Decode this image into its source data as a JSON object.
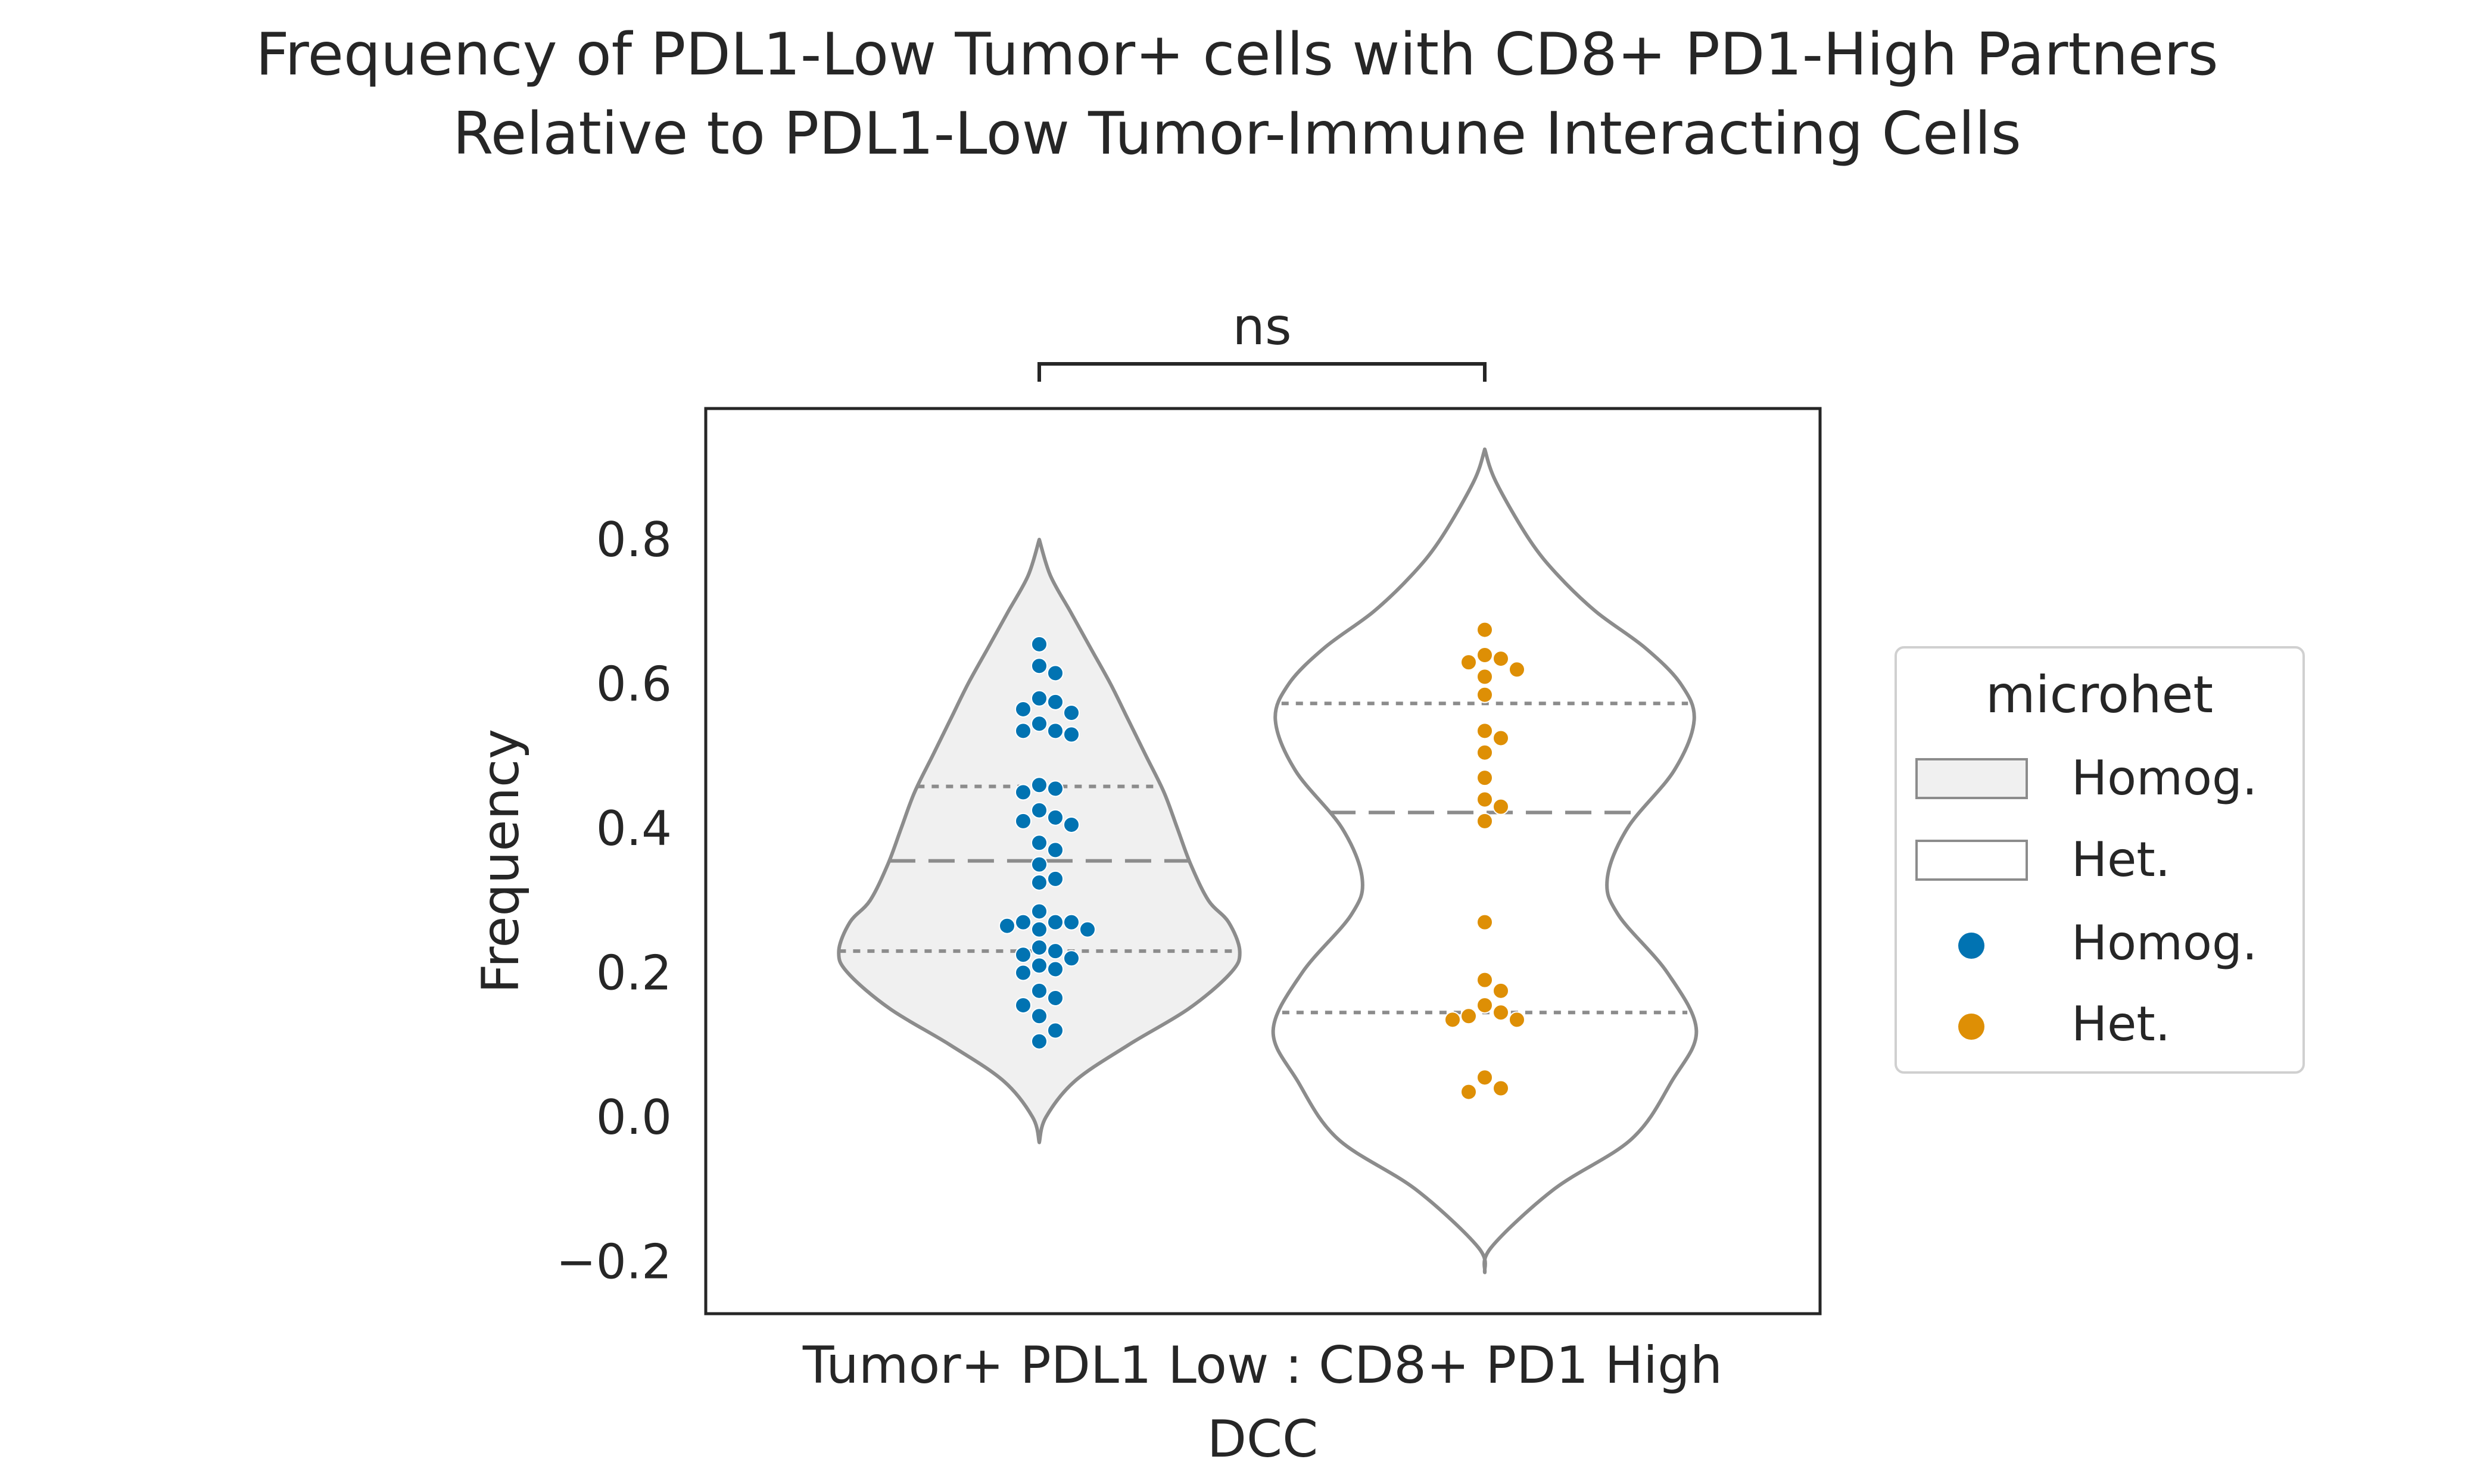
{
  "chart_data": {
    "type": "violin",
    "title_lines": [
      "Frequency of PDL1-Low Tumor+ cells with CD8+ PD1-High Partners",
      "Relative to PDL1-Low Tumor-Immune Interacting Cells"
    ],
    "xlabel_lines": [
      "Tumor+ PDL1 Low : CD8+ PD1 High",
      "DCC"
    ],
    "ylabel": "Frequency",
    "ylim": [
      -0.27,
      0.98
    ],
    "yticks": [
      -0.2,
      0.0,
      0.2,
      0.4,
      0.6,
      0.8
    ],
    "ytick_labels": [
      "−0.2",
      "0.0",
      "0.2",
      "0.4",
      "0.6",
      "0.8"
    ],
    "significance": {
      "label": "ns",
      "between": [
        "Homog.",
        "Het."
      ]
    },
    "legend": {
      "title": "microhet",
      "position": "right",
      "entries": [
        {
          "label": "Homog.",
          "kind": "patch",
          "color": "#f0f0f0"
        },
        {
          "label": "Het.",
          "kind": "patch",
          "color": "#ffffff"
        },
        {
          "label": "Homog.",
          "kind": "point",
          "color": "#0173b2"
        },
        {
          "label": "Het.",
          "kind": "point",
          "color": "#de8f05"
        }
      ]
    },
    "colors": {
      "violin_edge": "#8c8c8c",
      "violin_fill_homog": "#f0f0f0",
      "violin_fill_het": "#ffffff",
      "homog_points": "#0173b2",
      "het_points": "#de8f05",
      "frame": "#262626"
    },
    "series": [
      {
        "name": "Homog.",
        "fill": "#f0f0f0",
        "point_color": "#0173b2",
        "violin": {
          "y": [
            -0.035,
            0.0,
            0.05,
            0.1,
            0.15,
            0.2,
            0.23,
            0.27,
            0.3,
            0.35,
            0.4,
            0.45,
            0.5,
            0.55,
            0.6,
            0.65,
            0.7,
            0.75,
            0.8
          ],
          "hw": [
            0.0,
            0.03,
            0.16,
            0.4,
            0.67,
            0.86,
            0.9,
            0.85,
            0.76,
            0.68,
            0.62,
            0.56,
            0.48,
            0.4,
            0.32,
            0.23,
            0.14,
            0.05,
            0.0
          ]
        },
        "quartiles": [
          0.23,
          0.355,
          0.458
        ],
        "points": [
          0.655,
          0.625,
          0.615,
          0.58,
          0.575,
          0.565,
          0.56,
          0.545,
          0.535,
          0.535,
          0.53,
          0.46,
          0.455,
          0.45,
          0.425,
          0.415,
          0.41,
          0.405,
          0.38,
          0.37,
          0.35,
          0.33,
          0.325,
          0.285,
          0.27,
          0.27,
          0.27,
          0.265,
          0.26,
          0.26,
          0.235,
          0.23,
          0.225,
          0.22,
          0.21,
          0.205,
          0.2,
          0.175,
          0.165,
          0.155,
          0.14,
          0.12,
          0.105
        ]
      },
      {
        "name": "Het.",
        "fill": "#ffffff",
        "point_color": "#de8f05",
        "violin": {
          "y": [
            -0.215,
            -0.18,
            -0.1,
            -0.03,
            0.05,
            0.12,
            0.2,
            0.28,
            0.33,
            0.4,
            0.48,
            0.55,
            0.6,
            0.65,
            0.7,
            0.75,
            0.8,
            0.88,
            0.925
          ],
          "hw": [
            0.0,
            0.03,
            0.31,
            0.66,
            0.84,
            0.95,
            0.82,
            0.6,
            0.55,
            0.64,
            0.85,
            0.94,
            0.88,
            0.72,
            0.5,
            0.33,
            0.2,
            0.05,
            0.0
          ]
        },
        "quartiles": [
          0.145,
          0.422,
          0.573
        ],
        "points": [
          0.675,
          0.64,
          0.635,
          0.63,
          0.62,
          0.61,
          0.585,
          0.535,
          0.525,
          0.505,
          0.47,
          0.44,
          0.43,
          0.41,
          0.27,
          0.19,
          0.175,
          0.155,
          0.145,
          0.14,
          0.135,
          0.135,
          0.055,
          0.04,
          0.035
        ]
      }
    ]
  }
}
